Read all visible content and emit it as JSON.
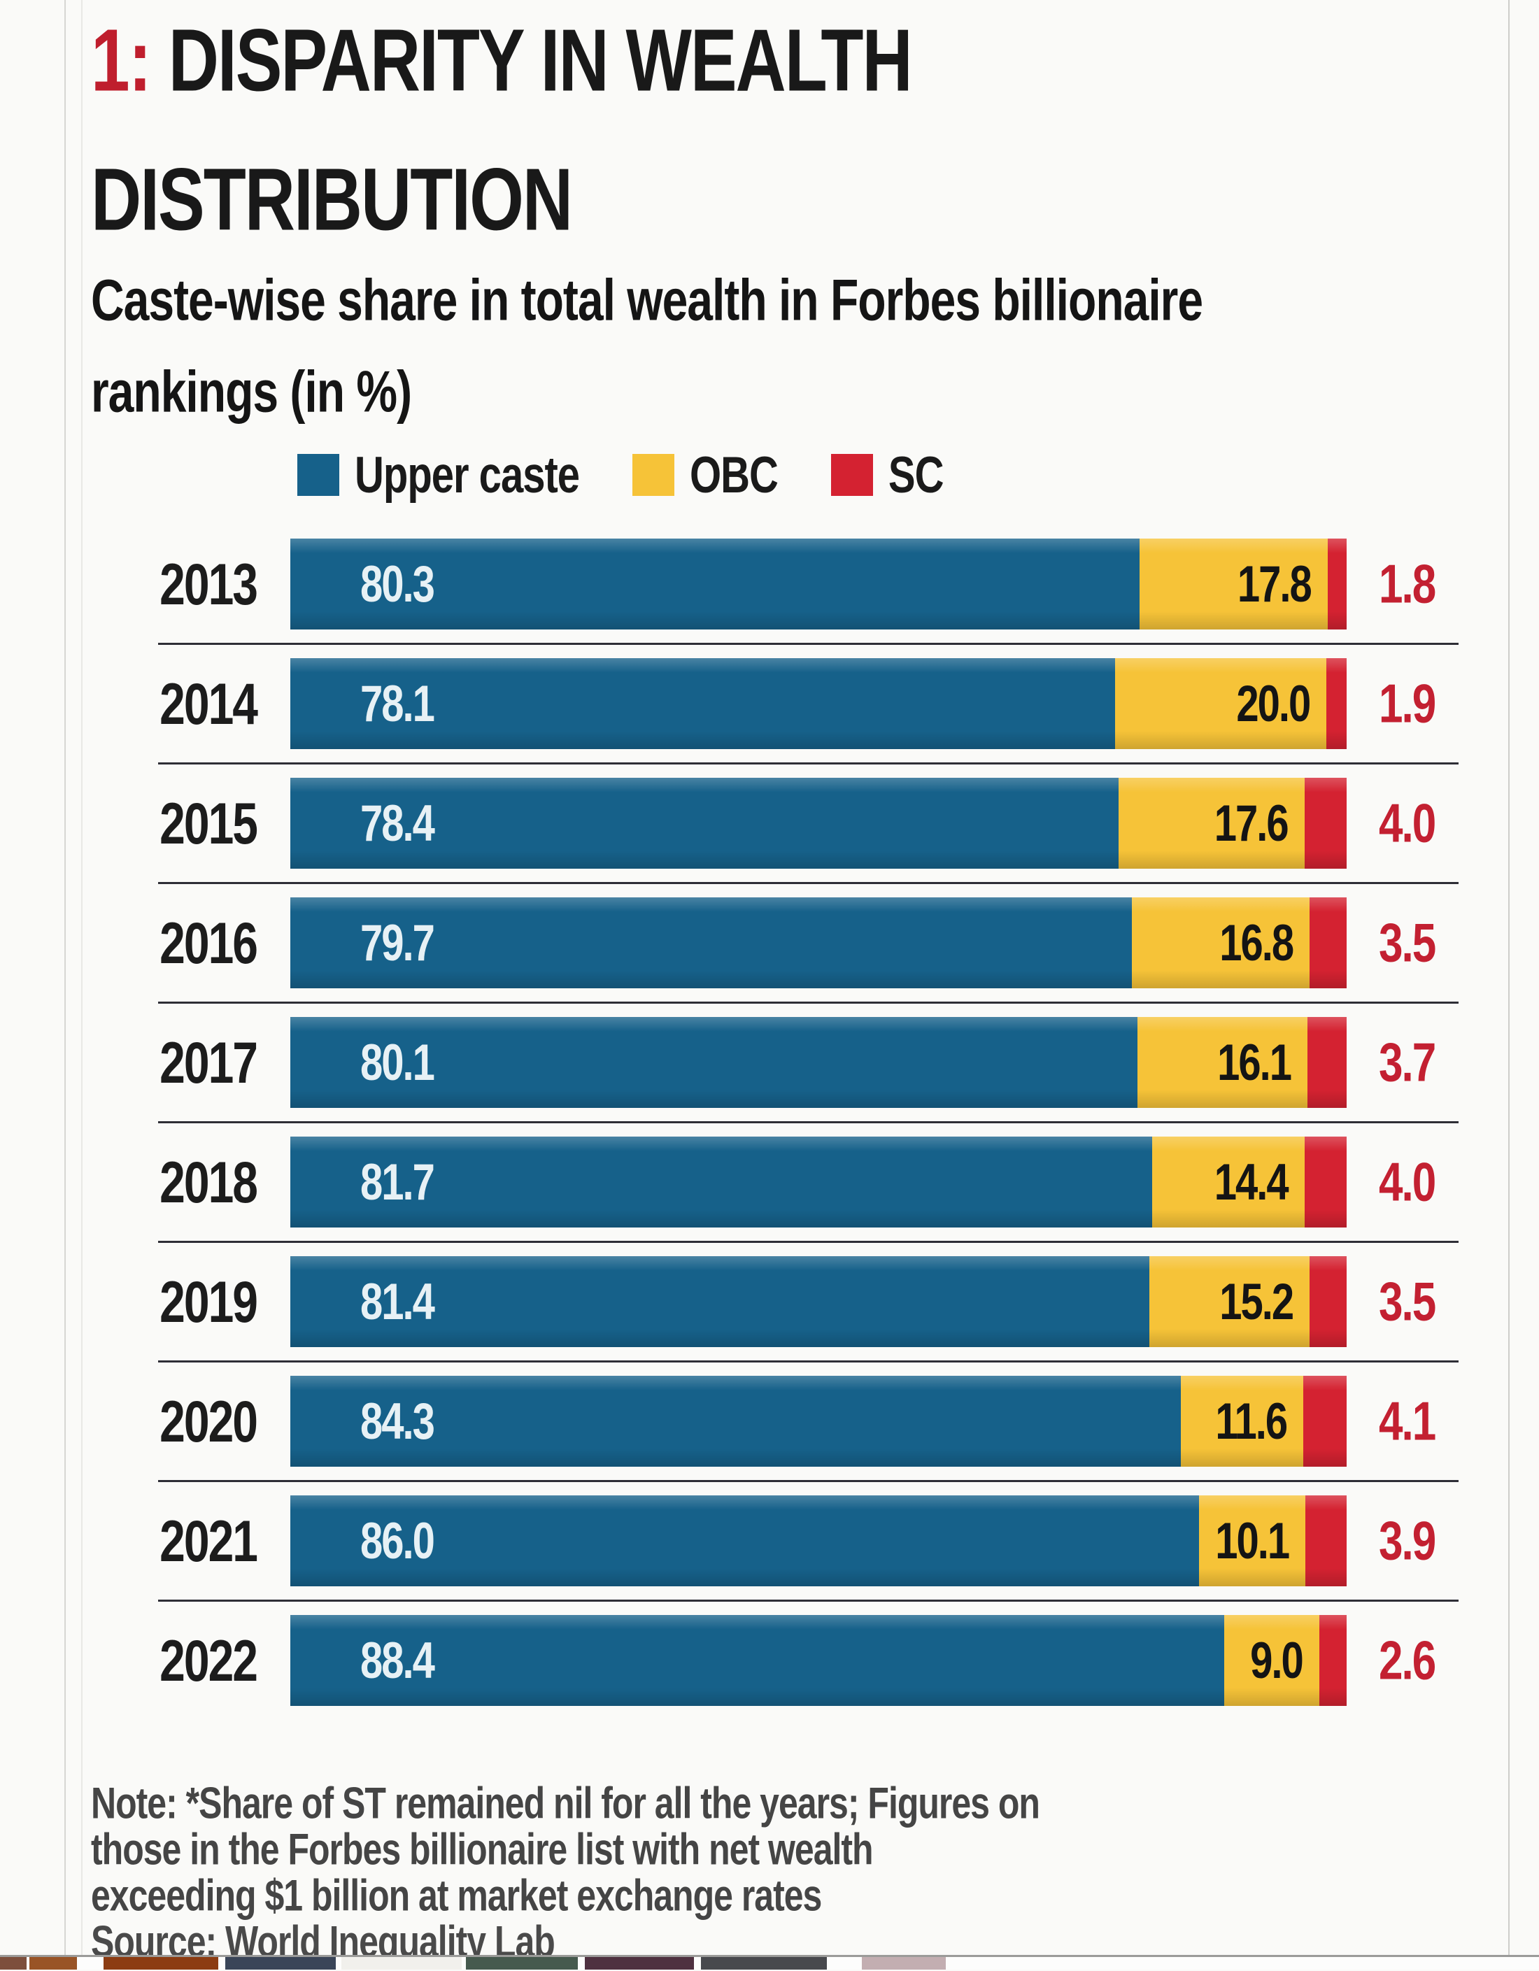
{
  "header": {
    "title_prefix": "1:",
    "title_rest": " DISPARITY IN WEALTH DISTRIBUTION",
    "subtitle": "Caste-wise share in total wealth in Forbes billionaire rankings (in %)"
  },
  "colors": {
    "title_accent": "#bf1e2d",
    "upper_caste": "#16618a",
    "obc": "#f6c338",
    "sc": "#d42231",
    "sc_value_text": "#c32031",
    "separator": "#2e2e36"
  },
  "chart_data": {
    "type": "bar",
    "orientation": "horizontal_stacked",
    "unit": "%",
    "title": "1: DISPARITY IN WEALTH DISTRIBUTION",
    "subtitle": "Caste-wise share in total wealth in Forbes billionaire rankings (in %)",
    "categories": [
      "2013",
      "2014",
      "2015",
      "2016",
      "2017",
      "2018",
      "2019",
      "2020",
      "2021",
      "2022"
    ],
    "series": [
      {
        "name": "Upper caste",
        "color": "#16618a",
        "values": [
          80.3,
          78.1,
          78.4,
          79.7,
          80.1,
          81.7,
          81.4,
          84.3,
          86.0,
          88.4
        ]
      },
      {
        "name": "OBC",
        "color": "#f6c338",
        "values": [
          17.8,
          20.0,
          17.6,
          16.8,
          16.1,
          14.4,
          15.2,
          11.6,
          10.1,
          9.0
        ]
      },
      {
        "name": "SC",
        "color": "#d42231",
        "values": [
          1.8,
          1.9,
          4.0,
          3.5,
          3.7,
          4.0,
          3.5,
          4.1,
          3.9,
          2.6
        ]
      }
    ],
    "xlim": [
      0,
      100
    ],
    "value_labels": true,
    "legend_position": "top",
    "grid": false
  },
  "note_lines": [
    "Note: *Share of ST remained nil for all the years; Figures on",
    "those in the Forbes billionaire list with net wealth",
    "exceeding $1 billion at market exchange rates"
  ],
  "source": "Source: World Inequality Lab",
  "thumbnails": [
    {
      "x": 0,
      "w": 38,
      "color": "#7d4f3c"
    },
    {
      "x": 42,
      "w": 68,
      "color": "#995426"
    },
    {
      "x": 148,
      "w": 164,
      "color": "#8c3c12"
    },
    {
      "x": 322,
      "w": 158,
      "color": "#3a4558"
    },
    {
      "x": 488,
      "w": 172,
      "color": "#f1f0ec"
    },
    {
      "x": 666,
      "w": 160,
      "color": "#465a4e"
    },
    {
      "x": 836,
      "w": 156,
      "color": "#4f3140"
    },
    {
      "x": 1002,
      "w": 180,
      "color": "#48494d"
    },
    {
      "x": 1232,
      "w": 120,
      "color": "#c3aeb1"
    }
  ]
}
